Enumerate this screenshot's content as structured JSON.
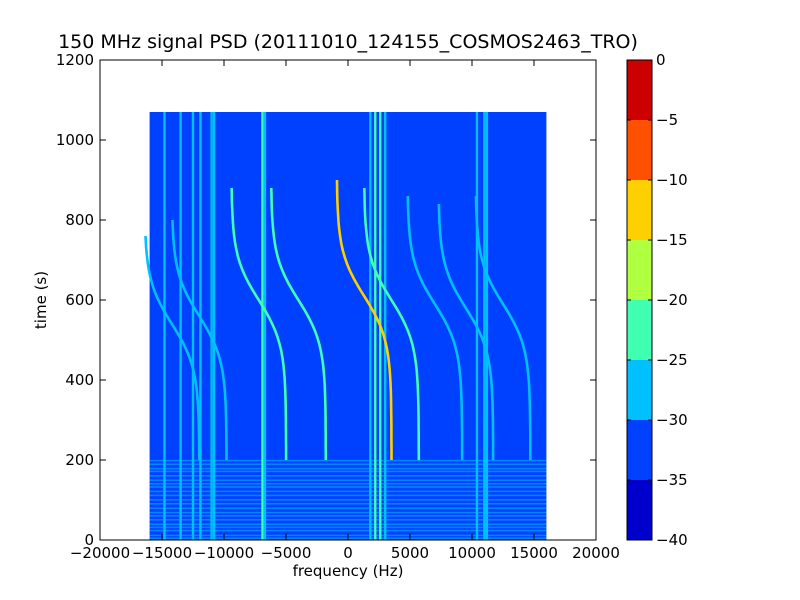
{
  "chart_data": {
    "type": "heatmap",
    "title": "150 MHz signal PSD (20111010_124155_COSMOS2463_TRO)",
    "xlabel": "frequency (Hz)",
    "ylabel": "time (s)",
    "xlim": [
      -20000,
      20000
    ],
    "ylim": [
      0,
      1200
    ],
    "x_ticks": [
      -20000,
      -15000,
      -10000,
      -5000,
      0,
      5000,
      10000,
      15000,
      20000
    ],
    "x_tick_labels": [
      "−20000",
      "−15000",
      "−10000",
      "−5000",
      "0",
      "5000",
      "10000",
      "15000",
      "20000"
    ],
    "y_ticks": [
      0,
      200,
      400,
      600,
      800,
      1000,
      1200
    ],
    "y_tick_labels": [
      "0",
      "200",
      "400",
      "600",
      "800",
      "1000",
      "1200"
    ],
    "data_extent": {
      "x": [
        -16000,
        16000
      ],
      "y": [
        0,
        1070
      ]
    },
    "background_level_range": [
      -35,
      -30
    ],
    "vertical_lines": [
      {
        "x": -14800,
        "level": "-30..-25"
      },
      {
        "x": -13500,
        "level": "-30..-25"
      },
      {
        "x": -12500,
        "level": "-30..-25"
      },
      {
        "x": -11900,
        "level": "-30..-25"
      },
      {
        "x": -11000,
        "level": "-30..-25"
      },
      {
        "x": -10800,
        "level": "-30..-25"
      },
      {
        "x": -6900,
        "level": "-25..-20"
      },
      {
        "x": -6700,
        "level": "-30..-25"
      },
      {
        "x": 1800,
        "level": "-30..-25"
      },
      {
        "x": 2200,
        "level": "-25..-20"
      },
      {
        "x": 2600,
        "level": "-25..-20"
      },
      {
        "x": 3000,
        "level": "-30..-25"
      },
      {
        "x": 10400,
        "level": "-30..-25"
      },
      {
        "x": 11000,
        "level": "-30..-25"
      },
      {
        "x": 11200,
        "level": "-30..-25"
      }
    ],
    "doppler_traces": [
      {
        "x0": -7200,
        "t_top": 880,
        "t_bottom": 200,
        "peak_level": "-25..-20"
      },
      {
        "x0": -4000,
        "t_top": 880,
        "t_bottom": 200,
        "peak_level": "-25..-20"
      },
      {
        "x0": 1300,
        "t_top": 900,
        "t_bottom": 200,
        "peak_level": "-15..-10"
      },
      {
        "x0": 3500,
        "t_top": 880,
        "t_bottom": 200,
        "peak_level": "-25..-20"
      },
      {
        "x0": 7000,
        "t_top": 860,
        "t_bottom": 200,
        "peak_level": "-30..-25"
      },
      {
        "x0": 9500,
        "t_top": 840,
        "t_bottom": 200,
        "peak_level": "-30..-25"
      },
      {
        "x0": 12500,
        "t_top": 860,
        "t_bottom": 200,
        "peak_level": "-30..-25"
      },
      {
        "x0": -12000,
        "t_top": 800,
        "t_bottom": 200,
        "peak_level": "-30..-25"
      },
      {
        "x0": -14200,
        "t_top": 760,
        "t_bottom": 200,
        "peak_level": "-30..-25"
      }
    ],
    "colorbar": {
      "levels": [
        -40,
        -35,
        -30,
        -25,
        -20,
        -15,
        -10,
        -5,
        0
      ],
      "tick_labels": [
        "−40",
        "−35",
        "−30",
        "−25",
        "−20",
        "−15",
        "−10",
        "−5",
        "0"
      ],
      "colors": [
        "#0000cd",
        "#0040ff",
        "#00c0ff",
        "#40ffb0",
        "#b0ff40",
        "#ffd000",
        "#ff5000",
        "#cd0000"
      ]
    },
    "grid": false,
    "legend": "none"
  }
}
